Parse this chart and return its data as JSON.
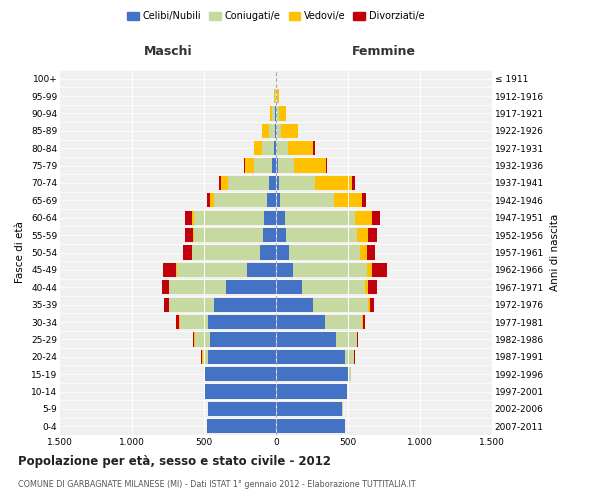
{
  "age_groups": [
    "0-4",
    "5-9",
    "10-14",
    "15-19",
    "20-24",
    "25-29",
    "30-34",
    "35-39",
    "40-44",
    "45-49",
    "50-54",
    "55-59",
    "60-64",
    "65-69",
    "70-74",
    "75-79",
    "80-84",
    "85-89",
    "90-94",
    "95-99",
    "100+"
  ],
  "birth_years": [
    "2007-2011",
    "2002-2006",
    "1997-2001",
    "1992-1996",
    "1987-1991",
    "1982-1986",
    "1977-1981",
    "1972-1976",
    "1967-1971",
    "1962-1966",
    "1957-1961",
    "1952-1956",
    "1947-1951",
    "1942-1946",
    "1937-1941",
    "1932-1936",
    "1927-1931",
    "1922-1926",
    "1917-1921",
    "1912-1916",
    "≤ 1911"
  ],
  "maschi": {
    "celibi": [
      480,
      470,
      490,
      490,
      470,
      460,
      470,
      430,
      350,
      200,
      110,
      90,
      80,
      60,
      50,
      25,
      15,
      10,
      5,
      2,
      0
    ],
    "coniugati": [
      0,
      0,
      2,
      10,
      40,
      100,
      200,
      310,
      390,
      490,
      470,
      480,
      490,
      370,
      280,
      130,
      80,
      40,
      20,
      5,
      0
    ],
    "vedovi": [
      0,
      0,
      0,
      0,
      5,
      10,
      5,
      5,
      5,
      5,
      5,
      5,
      10,
      30,
      55,
      60,
      55,
      45,
      15,
      5,
      0
    ],
    "divorziati": [
      0,
      0,
      0,
      0,
      5,
      5,
      20,
      30,
      50,
      90,
      60,
      60,
      50,
      20,
      10,
      5,
      5,
      0,
      0,
      0,
      0
    ]
  },
  "femmine": {
    "nubili": [
      480,
      460,
      490,
      500,
      480,
      420,
      340,
      260,
      180,
      120,
      90,
      70,
      60,
      30,
      20,
      15,
      10,
      5,
      5,
      2,
      0
    ],
    "coniugate": [
      0,
      2,
      5,
      20,
      60,
      140,
      260,
      380,
      440,
      510,
      490,
      490,
      490,
      370,
      250,
      110,
      70,
      30,
      15,
      5,
      0
    ],
    "vedove": [
      0,
      0,
      0,
      0,
      5,
      5,
      5,
      10,
      20,
      40,
      50,
      80,
      120,
      200,
      260,
      220,
      180,
      120,
      50,
      15,
      2
    ],
    "divorziate": [
      0,
      0,
      0,
      0,
      5,
      5,
      15,
      30,
      60,
      100,
      60,
      60,
      50,
      25,
      20,
      10,
      10,
      0,
      0,
      0,
      0
    ]
  },
  "colors": {
    "celibi": "#4472c4",
    "coniugati": "#c5d9a0",
    "vedovi": "#ffc000",
    "divorziati": "#c0000a"
  },
  "title": "Popolazione per età, sesso e stato civile - 2012",
  "subtitle": "COMUNE DI GARBAGNATE MILANESE (MI) - Dati ISTAT 1° gennaio 2012 - Elaborazione TUTTITALIA.IT",
  "xlabel_left": "Maschi",
  "xlabel_right": "Femmine",
  "ylabel_left": "Fasce di età",
  "ylabel_right": "Anni di nascita",
  "xlim": 1500,
  "xtick_labels": [
    "1.500",
    "1.000",
    "500",
    "0",
    "500",
    "1.000",
    "1.500"
  ],
  "legend_labels": [
    "Celibi/Nubili",
    "Coniugati/e",
    "Vedovi/e",
    "Divorziati/e"
  ],
  "bg_color": "#ffffff",
  "plot_bg_color": "#f0f0f0",
  "grid_color": "#ffffff"
}
